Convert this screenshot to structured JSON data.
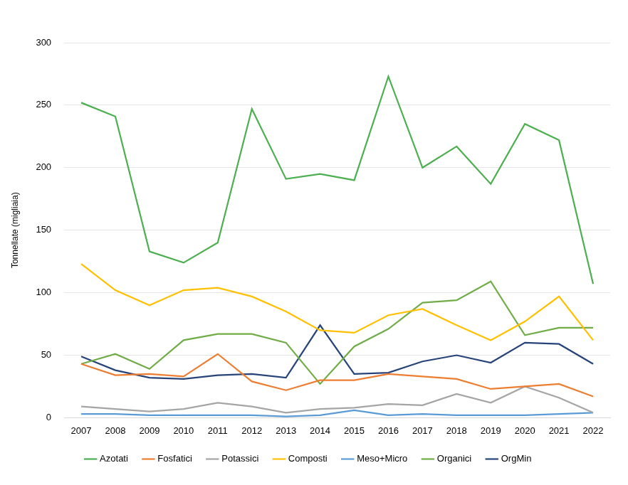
{
  "chart_data": {
    "type": "line",
    "y_label": "Tonnellate (migliaia)",
    "categories": [
      "2007",
      "2008",
      "2009",
      "2010",
      "2011",
      "2012",
      "2013",
      "2014",
      "2015",
      "2016",
      "2017",
      "2018",
      "2019",
      "2020",
      "2021",
      "2022"
    ],
    "series": [
      {
        "name": "Azotati",
        "color": "#4caf50",
        "values": [
          252,
          241,
          133,
          124,
          140,
          247,
          191,
          195,
          190,
          273,
          200,
          217,
          187,
          235,
          222,
          107
        ]
      },
      {
        "name": "Fosfatici",
        "color": "#ed7d31",
        "values": [
          43,
          34,
          35,
          33,
          51,
          29,
          22,
          30,
          30,
          35,
          33,
          31,
          23,
          25,
          27,
          17
        ]
      },
      {
        "name": "Potassici",
        "color": "#a5a5a5",
        "values": [
          9,
          7,
          5,
          7,
          12,
          9,
          4,
          7,
          8,
          11,
          10,
          19,
          12,
          25,
          16,
          4
        ]
      },
      {
        "name": "Composti",
        "color": "#ffc000",
        "values": [
          123,
          102,
          90,
          102,
          104,
          97,
          85,
          70,
          68,
          82,
          87,
          74,
          62,
          77,
          97,
          62
        ]
      },
      {
        "name": "Meso+Micro",
        "color": "#5b9bd5",
        "values": [
          3,
          3,
          2,
          2,
          2,
          2,
          1,
          2,
          6,
          2,
          3,
          2,
          2,
          2,
          3,
          4
        ]
      },
      {
        "name": "Organici",
        "color": "#70ad47",
        "values": [
          43,
          51,
          39,
          62,
          67,
          67,
          60,
          27,
          57,
          71,
          92,
          94,
          109,
          66,
          72,
          72
        ]
      },
      {
        "name": "OrgMin",
        "color": "#264478",
        "values": [
          49,
          38,
          32,
          31,
          34,
          35,
          32,
          74,
          35,
          36,
          45,
          50,
          44,
          60,
          59,
          43
        ]
      }
    ],
    "ylim": [
      0,
      300
    ],
    "yticks": [
      0,
      50,
      100,
      150,
      200,
      250,
      300
    ],
    "grid": true,
    "legend": "bottom"
  }
}
